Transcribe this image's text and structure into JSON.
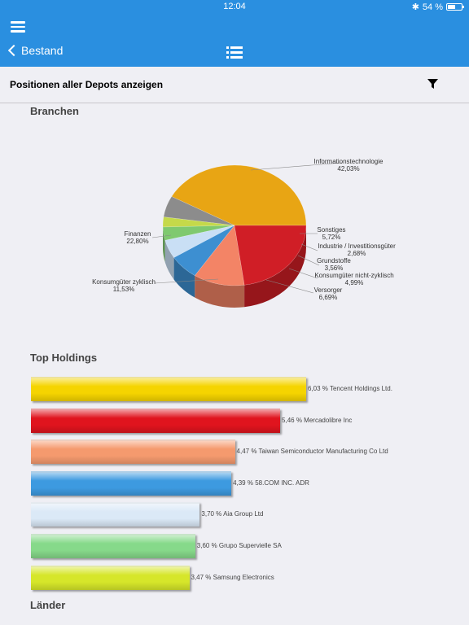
{
  "status": {
    "time": "12:04",
    "battery": "54 %"
  },
  "nav": {
    "back_label": "Bestand"
  },
  "filter": {
    "label": "Positionen aller Depots anzeigen"
  },
  "sections": {
    "branchen": "Branchen",
    "top_holdings": "Top Holdings",
    "laender": "Länder"
  },
  "chart_data": [
    {
      "type": "pie",
      "title": "Branchen",
      "slices": [
        {
          "name": "Informationstechnologie",
          "value": 42.03,
          "label": "42,03%",
          "color": "#e8a514"
        },
        {
          "name": "Sonstiges",
          "value": 5.72,
          "label": "5,72%",
          "color": "#8c8c8c"
        },
        {
          "name": "Industrie / Investitionsgüter",
          "value": 2.68,
          "label": "2,68%",
          "color": "#c5d94a"
        },
        {
          "name": "Grundstoffe",
          "value": 3.56,
          "label": "3,56%",
          "color": "#7fc96f"
        },
        {
          "name": "Konsumgüter nicht-zyklisch",
          "value": 4.99,
          "label": "4,99%",
          "color": "#c9dff5"
        },
        {
          "name": "Versorger",
          "value": 6.69,
          "label": "6,69%",
          "color": "#3d8fd1"
        },
        {
          "name": "Konsumgüter zyklisch",
          "value": 11.53,
          "label": "11,53%",
          "color": "#f38466"
        },
        {
          "name": "Finanzen",
          "value": 22.8,
          "label": "22,80%",
          "color": "#d01e26"
        }
      ]
    },
    {
      "type": "bar",
      "title": "Top Holdings",
      "categories": [
        "Tencent Holdings Ltd.",
        "Mercadolibre Inc",
        "Taiwan Semiconductor Manufacturing Co Ltd",
        "58.COM INC. ADR",
        "Aia Group Ltd",
        "Grupo Supervielle SA",
        "Samsung Electronics"
      ],
      "values": [
        6.03,
        5.46,
        4.47,
        4.39,
        3.7,
        3.6,
        3.47
      ],
      "labels": [
        "6,03 % Tencent Holdings Ltd.",
        "5,46 % Mercadolibre Inc",
        "4,47 % Taiwan Semiconductor Manufacturing Co Ltd",
        "4,39 % 58.COM INC. ADR",
        "3,70 % Aia Group Ltd",
        "3,60 % Grupo Supervielle SA",
        "3,47 % Samsung Electronics"
      ],
      "colors": [
        "#f5d400",
        "#e0141e",
        "#f59a6e",
        "#3d9ae0",
        "#dbe9f7",
        "#86d98a",
        "#d6e62a"
      ]
    }
  ]
}
